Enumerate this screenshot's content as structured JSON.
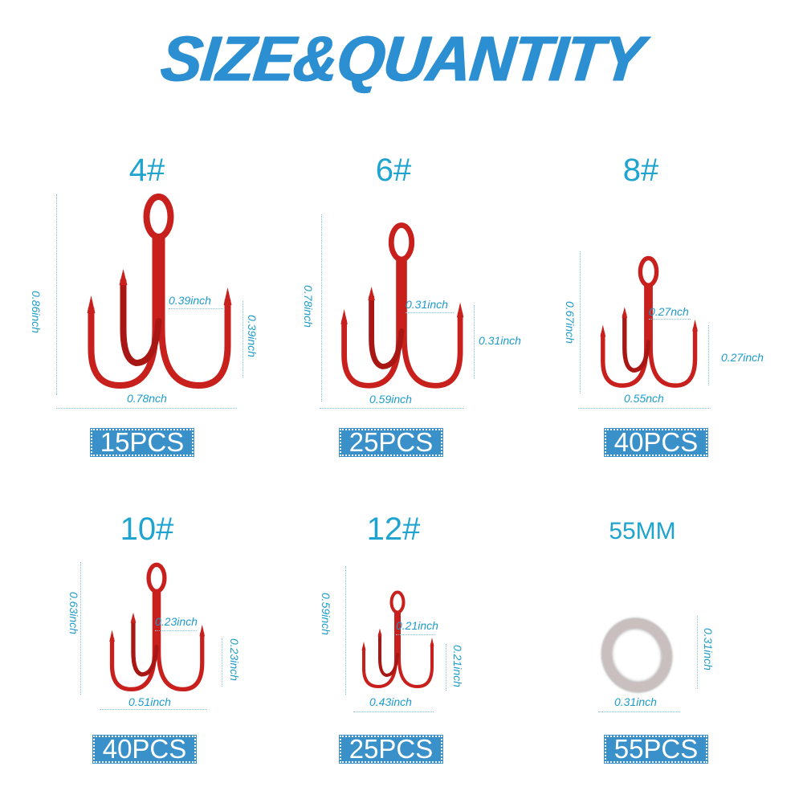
{
  "title": "SIZE&QUANTITY",
  "hook_color": "#c8201c",
  "accent_color": "#3a91c9",
  "items": [
    {
      "size": "4#",
      "height": "0.86inch",
      "width": "0.78nch",
      "gap": "0.39inch",
      "point": "0.39inch",
      "qty": "15PCS"
    },
    {
      "size": "6#",
      "height": "0.78inch",
      "width": "0.59inch",
      "gap": "0.31inch",
      "point": "0.31inch",
      "qty": "25PCS"
    },
    {
      "size": "8#",
      "height": "0.67inch",
      "width": "0.55nch",
      "gap": "0.27nch",
      "point": "0.27inch",
      "qty": "40PCS"
    },
    {
      "size": "10#",
      "height": "0.63inch",
      "width": "0.51inch",
      "gap": "0.23inch",
      "point": "0.23inch",
      "qty": "40PCS"
    },
    {
      "size": "12#",
      "height": "0.59inch",
      "width": "0.43inch",
      "gap": "0.21inch",
      "point": "0.21inch",
      "qty": "25PCS"
    },
    {
      "size": "55MM",
      "height": "0.31inch",
      "width": "0.31inch",
      "qty": "55PCS"
    }
  ]
}
